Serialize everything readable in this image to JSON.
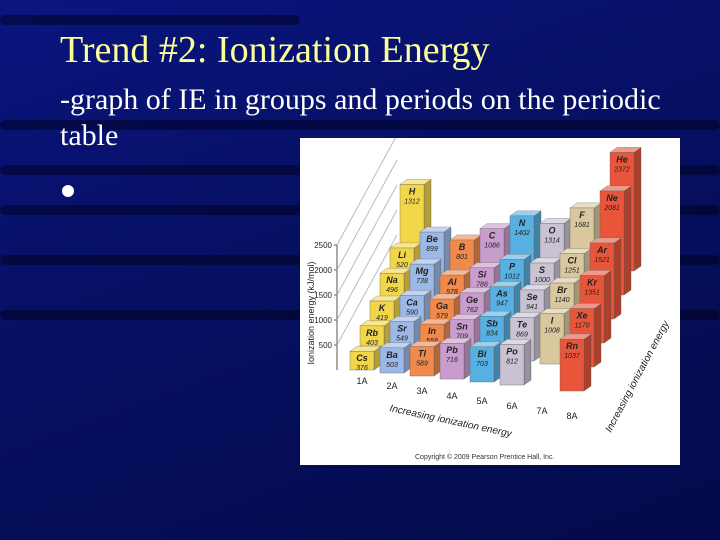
{
  "title": "Trend #2: Ionization Energy",
  "text": "-graph of IE in groups and periods on the periodic table",
  "chart_data": {
    "type": "bar3d",
    "y_label": "Ionization energy (kJ/mol)",
    "x_label": "Increasing ionization energy",
    "z_label": "Increasing ionization energy",
    "copyright": "Copyright © 2009 Pearson Prentice Hall, Inc.",
    "categories": [
      null,
      null,
      null,
      null,
      null,
      null
    ],
    "ylim": [
      0,
      2500
    ],
    "yticks": [
      500,
      1000,
      1500,
      2000,
      2500
    ],
    "series": [
      {
        "name": "1A",
        "color": "#f2d64a",
        "labels": [
          "H",
          "Li",
          "Na",
          "K",
          "Rb",
          "Cs"
        ],
        "values": [
          1312,
          520,
          496,
          419,
          403,
          376
        ]
      },
      {
        "name": "2A",
        "color": "#9cb8e6",
        "labels": [
          null,
          "Be",
          "Mg",
          "Ca",
          "Sr",
          "Ba"
        ],
        "values": [
          null,
          899,
          738,
          590,
          549,
          503
        ]
      },
      {
        "name": "3A",
        "color": "#f0894a",
        "labels": [
          null,
          "B",
          "Al",
          "Ga",
          "In",
          "Tl"
        ],
        "values": [
          null,
          801,
          578,
          579,
          558,
          589
        ]
      },
      {
        "name": "4A",
        "color": "#c89ccc",
        "labels": [
          null,
          "C",
          "Si",
          "Ge",
          "Sn",
          "Pb"
        ],
        "values": [
          null,
          1086,
          786,
          762,
          709,
          716
        ]
      },
      {
        "name": "5A",
        "color": "#58b0e2",
        "labels": [
          null,
          "N",
          "P",
          "As",
          "Sb",
          "Bi"
        ],
        "values": [
          null,
          1402,
          1012,
          947,
          834,
          703
        ]
      },
      {
        "name": "6A",
        "color": "#c9c2d2",
        "labels": [
          null,
          "O",
          "S",
          "Se",
          "Te",
          "Po"
        ],
        "values": [
          null,
          1314,
          1000,
          941,
          869,
          812
        ]
      },
      {
        "name": "7A",
        "color": "#d9c89e",
        "labels": [
          null,
          "F",
          "Cl",
          "Br",
          "I",
          null
        ],
        "values": [
          null,
          1681,
          1251,
          1140,
          1008,
          null
        ]
      },
      {
        "name": "8A",
        "color": "#e8553a",
        "labels": [
          "He",
          "Ne",
          "Ar",
          "Kr",
          "Xe",
          "Rn"
        ],
        "values": [
          2372,
          2081,
          1521,
          1351,
          1170,
          1037
        ]
      }
    ]
  }
}
